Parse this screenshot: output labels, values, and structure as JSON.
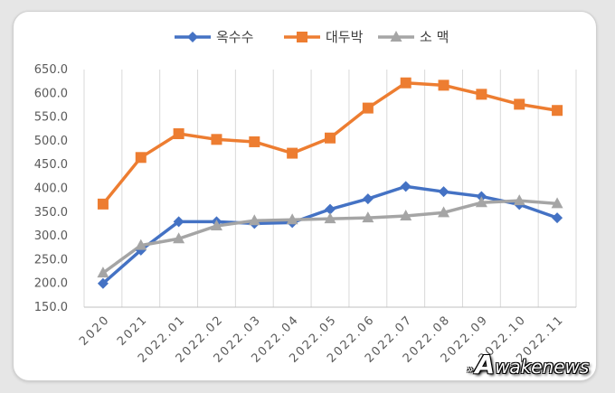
{
  "chart_data": {
    "type": "line",
    "categories": [
      "2020",
      "2021",
      "2022.01",
      "2022.02",
      "2022.03",
      "2022.04",
      "2022.05",
      "2022.06",
      "2022.07",
      "2022.08",
      "2022.09",
      "2022.10",
      "2022.11"
    ],
    "series": [
      {
        "name": "옥수수",
        "color": "#4472c4",
        "marker": "diamond",
        "values": [
          200,
          270,
          330,
          330,
          326,
          328,
          356,
          378,
          404,
          393,
          383,
          366,
          338
        ]
      },
      {
        "name": "대두박",
        "color": "#ed7d31",
        "marker": "square",
        "values": [
          367,
          465,
          515,
          503,
          498,
          474,
          506,
          569,
          622,
          617,
          598,
          577,
          564
        ]
      },
      {
        "name": "소 맥",
        "color": "#a5a5a5",
        "marker": "triangle",
        "values": [
          222,
          280,
          294,
          321,
          332,
          334,
          336,
          338,
          342,
          349,
          370,
          374,
          368
        ]
      }
    ],
    "yticks": [
      "150.0",
      "200.0",
      "250.0",
      "300.0",
      "350.0",
      "400.0",
      "450.0",
      "500.0",
      "550.0",
      "600.0",
      "650.0"
    ],
    "ylim": [
      150,
      650
    ],
    "grid": "vertical",
    "legend": "top",
    "title": "",
    "xlabel": "",
    "ylabel": ""
  },
  "watermark": {
    "big": "A",
    "rest": "wakenews",
    "marks": "»"
  }
}
